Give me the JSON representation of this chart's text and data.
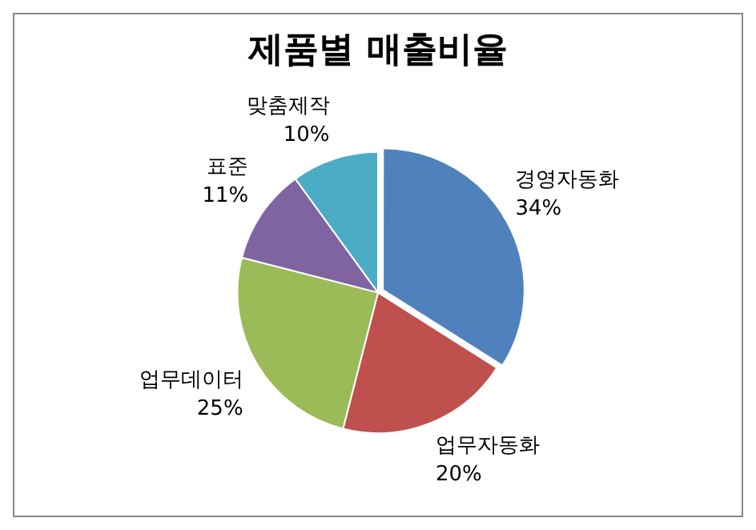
{
  "chart_data": {
    "type": "pie",
    "title": "제품별 매출비율",
    "categories": [
      "경영자동화",
      "업무자동화",
      "업무데이터",
      "표준",
      "맞춤제작"
    ],
    "values": [
      34,
      20,
      25,
      11,
      10
    ],
    "colors": [
      "#4f81bd",
      "#c0504d",
      "#9bbb59",
      "#8064a2",
      "#4bacc6"
    ],
    "value_labels": [
      "34%",
      "20%",
      "25%",
      "11%",
      "10%"
    ],
    "legend": false
  }
}
